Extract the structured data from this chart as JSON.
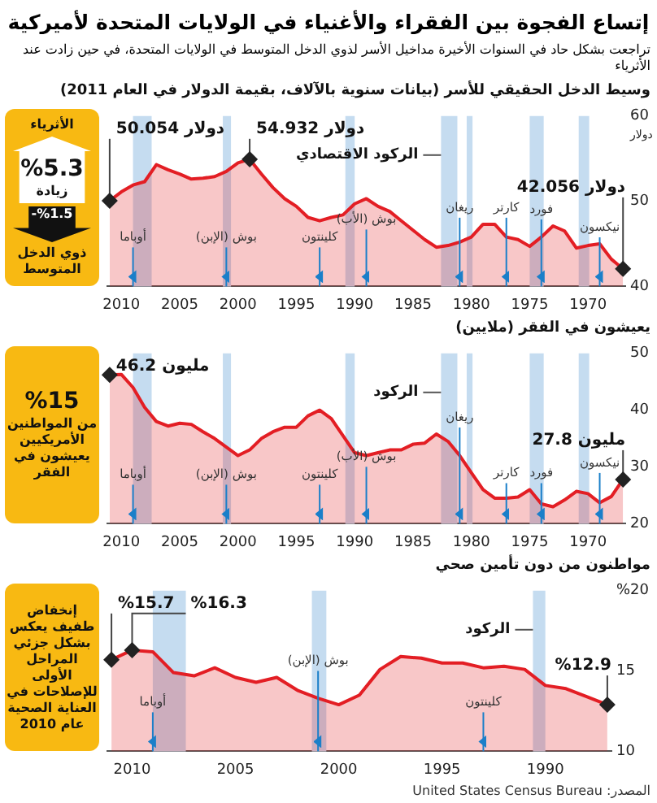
{
  "chart_data": [
    {
      "type": "other",
      "title": "إتساع الفجوة بين الفقراء والأغنياء في الولايات المتحدة لأميركية",
      "subtitle": "تراجعت بشكل حاد في السنوات الأخيرة مداخيل الأسر لذوي الدخل المتوسط في الولايات المتحدة، في حين زادت عند الأثرياء",
      "annotations": [
        "المصدر: United States Census Bureau"
      ]
    },
    {
      "type": "area",
      "title": "وسيط الدخل الحقيقي للأسر (بيانات سنوية بالآلاف، بقيمة الدولار في العام 2011)",
      "ylabel": "دولار",
      "x": [
        2011,
        2010,
        2009,
        2008,
        2007,
        2006,
        2005,
        2004,
        2003,
        2002,
        2001,
        2000,
        1999,
        1998,
        1997,
        1996,
        1995,
        1994,
        1993,
        1992,
        1991,
        1990,
        1989,
        1988,
        1987,
        1986,
        1985,
        1984,
        1983,
        1982,
        1981,
        1980,
        1979,
        1978,
        1977,
        1976,
        1975,
        1974,
        1973,
        1972,
        1971,
        1970,
        1969,
        1968,
        1967
      ],
      "series": [
        {
          "color": "#e31e24",
          "values": [
            50.054,
            51.1,
            51.9,
            52.3,
            54.3,
            53.7,
            53.2,
            52.6,
            52.7,
            52.9,
            53.5,
            54.5,
            54.932,
            53.2,
            51.6,
            50.3,
            49.4,
            48.1,
            47.7,
            48.1,
            48.4,
            49.7,
            50.3,
            49.4,
            48.8,
            47.7,
            46.6,
            45.5,
            44.6,
            44.8,
            45.2,
            45.8,
            47.3,
            47.3,
            45.8,
            45.5,
            44.7,
            45.8,
            47.1,
            46.5,
            44.5,
            44.8,
            45.0,
            43.2,
            42.056
          ],
          "value_labels": [
            "50.054 دولار",
            null,
            null,
            null,
            null,
            null,
            null,
            null,
            null,
            null,
            null,
            null,
            "54.932 دولار",
            null,
            null,
            null,
            null,
            null,
            null,
            null,
            null,
            null,
            null,
            null,
            null,
            null,
            null,
            null,
            null,
            null,
            null,
            null,
            null,
            null,
            null,
            null,
            null,
            null,
            null,
            null,
            null,
            null,
            null,
            null,
            "42.056 دولار"
          ]
        }
      ],
      "xlim": [
        2011.2,
        1966.8
      ],
      "xticks": [
        2010,
        2005,
        2000,
        1995,
        1990,
        1985,
        1980,
        1975,
        1970
      ],
      "ylim": [
        40,
        60
      ],
      "yticks": [
        40,
        50,
        60
      ],
      "marker": "none",
      "bands": [
        {
          "axis": "x",
          "from": 2009.0,
          "to": 2007.4,
          "color": "#c5dcf0"
        },
        {
          "axis": "x",
          "from": 2001.3,
          "to": 2000.6,
          "color": "#c5dcf0"
        },
        {
          "axis": "x",
          "from": 1990.8,
          "to": 1990.0,
          "color": "#c5dcf0"
        },
        {
          "axis": "x",
          "from": 1982.6,
          "to": 1981.2,
          "color": "#c5dcf0",
          "label": "الركود الاقتصادي"
        },
        {
          "axis": "x",
          "from": 1980.4,
          "to": 1979.9,
          "color": "#c5dcf0"
        },
        {
          "axis": "x",
          "from": 1975.0,
          "to": 1973.8,
          "color": "#c5dcf0"
        },
        {
          "axis": "x",
          "from": 1970.8,
          "to": 1969.9,
          "color": "#c5dcf0"
        }
      ],
      "ref_lines": [
        {
          "axis": "x",
          "value": 2009,
          "label": "أوباما",
          "color": "#1a7fc9"
        },
        {
          "axis": "x",
          "value": 2001,
          "label": "بوش (الإبن)",
          "color": "#1a7fc9"
        },
        {
          "axis": "x",
          "value": 1993,
          "label": "كلينتون",
          "color": "#1a7fc9"
        },
        {
          "axis": "x",
          "value": 1989,
          "label": "بوش (الأب)",
          "color": "#1a7fc9"
        },
        {
          "axis": "x",
          "value": 1981,
          "label": "ريغان",
          "color": "#1a7fc9"
        },
        {
          "axis": "x",
          "value": 1977,
          "label": "كارتر",
          "color": "#1a7fc9"
        },
        {
          "axis": "x",
          "value": 1974,
          "label": "فورد",
          "color": "#1a7fc9"
        },
        {
          "axis": "x",
          "value": 1969,
          "label": "نيكسون",
          "color": "#1a7fc9"
        }
      ],
      "annotations": [
        "الأثرياء",
        "%5.3",
        "زيادة",
        "%1.5-",
        "ذوي الدخل المتوسط"
      ]
    },
    {
      "type": "area",
      "title": "يعيشون في الفقر (ملايين)",
      "x": [
        2011,
        2010,
        2009,
        2008,
        2007,
        2006,
        2005,
        2004,
        2003,
        2002,
        2001,
        2000,
        1999,
        1998,
        1997,
        1996,
        1995,
        1994,
        1993,
        1992,
        1991,
        1990,
        1989,
        1988,
        1987,
        1986,
        1985,
        1984,
        1983,
        1982,
        1981,
        1980,
        1979,
        1978,
        1977,
        1976,
        1975,
        1974,
        1973,
        1972,
        1971,
        1970,
        1969,
        1968,
        1967
      ],
      "series": [
        {
          "color": "#e31e24",
          "values": [
            46.2,
            46.3,
            44.0,
            40.5,
            38.0,
            37.2,
            37.7,
            37.5,
            36.2,
            35.0,
            33.5,
            32.0,
            33.0,
            35.0,
            36.2,
            37.0,
            37.0,
            39.0,
            40.0,
            38.5,
            35.5,
            32.5,
            32.0,
            32.5,
            33.0,
            33.0,
            34.0,
            34.2,
            35.8,
            34.5,
            32.0,
            29.0,
            26.0,
            24.5,
            24.5,
            24.7,
            26.0,
            23.5,
            23.0,
            24.2,
            25.7,
            25.3,
            23.7,
            24.8,
            27.8
          ],
          "value_labels": [
            "46.2 مليون",
            null,
            null,
            null,
            null,
            null,
            null,
            null,
            null,
            null,
            null,
            null,
            null,
            null,
            null,
            null,
            null,
            null,
            null,
            null,
            null,
            null,
            null,
            null,
            null,
            null,
            null,
            null,
            null,
            null,
            null,
            null,
            null,
            null,
            null,
            null,
            null,
            null,
            null,
            null,
            null,
            null,
            null,
            null,
            "27.8 مليون"
          ]
        }
      ],
      "xlim": [
        2011.2,
        1966.8
      ],
      "xticks": [
        2010,
        2005,
        2000,
        1995,
        1990,
        1985,
        1980,
        1975,
        1970
      ],
      "ylim": [
        20,
        50
      ],
      "yticks": [
        20,
        30,
        40,
        50
      ],
      "marker": "none",
      "bands": [
        {
          "axis": "x",
          "from": 2009.0,
          "to": 2007.4,
          "color": "#c5dcf0"
        },
        {
          "axis": "x",
          "from": 2001.3,
          "to": 2000.6,
          "color": "#c5dcf0"
        },
        {
          "axis": "x",
          "from": 1990.8,
          "to": 1990.0,
          "color": "#c5dcf0"
        },
        {
          "axis": "x",
          "from": 1982.6,
          "to": 1981.2,
          "color": "#c5dcf0",
          "label": "الركود"
        },
        {
          "axis": "x",
          "from": 1980.4,
          "to": 1979.9,
          "color": "#c5dcf0"
        },
        {
          "axis": "x",
          "from": 1975.0,
          "to": 1973.8,
          "color": "#c5dcf0"
        },
        {
          "axis": "x",
          "from": 1970.8,
          "to": 1969.9,
          "color": "#c5dcf0"
        }
      ],
      "ref_lines": [
        {
          "axis": "x",
          "value": 2009,
          "label": "أوباما",
          "color": "#1a7fc9"
        },
        {
          "axis": "x",
          "value": 2001,
          "label": "بوش (الإبن)",
          "color": "#1a7fc9"
        },
        {
          "axis": "x",
          "value": 1993,
          "label": "كلينتون",
          "color": "#1a7fc9"
        },
        {
          "axis": "x",
          "value": 1989,
          "label": "بوش (الأب)",
          "color": "#1a7fc9"
        },
        {
          "axis": "x",
          "value": 1981,
          "label": "ريغان",
          "color": "#1a7fc9"
        },
        {
          "axis": "x",
          "value": 1977,
          "label": "كارتر",
          "color": "#1a7fc9"
        },
        {
          "axis": "x",
          "value": 1974,
          "label": "فورد",
          "color": "#1a7fc9"
        },
        {
          "axis": "x",
          "value": 1969,
          "label": "نيكسون",
          "color": "#1a7fc9"
        }
      ],
      "annotations": [
        "%15",
        "من المواطنين الأمريكيين يعيشون في الفقر"
      ]
    },
    {
      "type": "area",
      "title": "مواطنون من دون تأمين صحي",
      "x": [
        2011,
        2010,
        2009,
        2008,
        2007,
        2006,
        2005,
        2004,
        2003,
        2002,
        2001,
        2000,
        1999,
        1998,
        1997,
        1996,
        1995,
        1994,
        1993,
        1992,
        1991,
        1990,
        1989,
        1988,
        1987
      ],
      "series": [
        {
          "color": "#e31e24",
          "values": [
            15.7,
            16.3,
            16.2,
            14.9,
            14.7,
            15.2,
            14.6,
            14.3,
            14.6,
            13.8,
            13.3,
            12.9,
            13.5,
            15.1,
            15.9,
            15.8,
            15.5,
            15.5,
            15.2,
            15.3,
            15.1,
            14.1,
            13.9,
            13.4,
            12.9
          ],
          "value_labels": [
            "%15.7",
            "%16.3",
            null,
            null,
            null,
            null,
            null,
            null,
            null,
            null,
            null,
            null,
            null,
            null,
            null,
            null,
            null,
            null,
            null,
            null,
            null,
            null,
            null,
            null,
            "%12.9"
          ]
        }
      ],
      "xlim": [
        2011.2,
        1986.8
      ],
      "xticks": [
        2010,
        2005,
        2000,
        1995,
        1990
      ],
      "ylim": [
        10,
        20
      ],
      "yticks": [
        10,
        15,
        {
          "value": 20,
          "label": "%20"
        }
      ],
      "marker": "none",
      "bands": [
        {
          "axis": "x",
          "from": 2009.0,
          "to": 2007.4,
          "color": "#c5dcf0"
        },
        {
          "axis": "x",
          "from": 2001.3,
          "to": 2000.6,
          "color": "#c5dcf0"
        },
        {
          "axis": "x",
          "from": 1990.6,
          "to": 1990.0,
          "color": "#c5dcf0",
          "label": "الركود"
        }
      ],
      "ref_lines": [
        {
          "axis": "x",
          "value": 2009,
          "label": "أوباما",
          "color": "#1a7fc9"
        },
        {
          "axis": "x",
          "value": 2001,
          "label": "بوش (الإبن)",
          "color": "#1a7fc9"
        },
        {
          "axis": "x",
          "value": 1993,
          "label": "كلينتون",
          "color": "#1a7fc9"
        }
      ],
      "annotations": [
        "إنخفاض طفيف يعكس بشكل جزئي المراحل الأولى للإصلاحات في العناية الصحية عام 2010"
      ]
    }
  ]
}
